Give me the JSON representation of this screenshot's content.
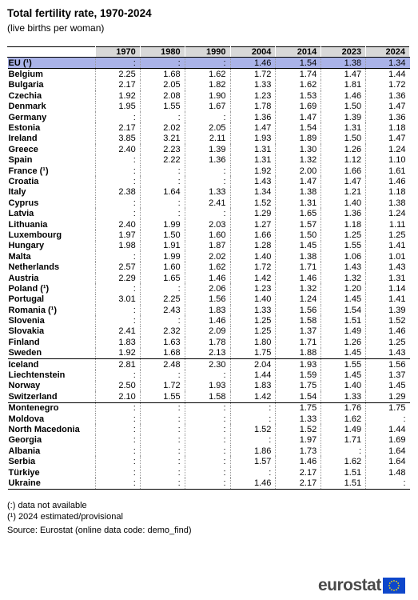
{
  "title": "Total fertility rate, 1970-2024",
  "subtitle": "(live births per woman)",
  "columns": [
    "",
    "1970",
    "1980",
    "1990",
    "2004",
    "2014",
    "2023",
    "2024"
  ],
  "rows": [
    [
      "EU (¹)",
      ":",
      ":",
      ":",
      "1.46",
      "1.54",
      "1.38",
      "1.34"
    ],
    [
      "Belgium",
      "2.25",
      "1.68",
      "1.62",
      "1.72",
      "1.74",
      "1.47",
      "1.44"
    ],
    [
      "Bulgaria",
      "2.17",
      "2.05",
      "1.82",
      "1.33",
      "1.62",
      "1.81",
      "1.72"
    ],
    [
      "Czechia",
      "1.92",
      "2.08",
      "1.90",
      "1.23",
      "1.53",
      "1.46",
      "1.36"
    ],
    [
      "Denmark",
      "1.95",
      "1.55",
      "1.67",
      "1.78",
      "1.69",
      "1.50",
      "1.47"
    ],
    [
      "Germany",
      ":",
      ":",
      ":",
      "1.36",
      "1.47",
      "1.39",
      "1.36"
    ],
    [
      "Estonia",
      "2.17",
      "2.02",
      "2.05",
      "1.47",
      "1.54",
      "1.31",
      "1.18"
    ],
    [
      "Ireland",
      "3.85",
      "3.21",
      "2.11",
      "1.93",
      "1.89",
      "1.50",
      "1.47"
    ],
    [
      "Greece",
      "2.40",
      "2.23",
      "1.39",
      "1.31",
      "1.30",
      "1.26",
      "1.24"
    ],
    [
      "Spain",
      ":",
      "2.22",
      "1.36",
      "1.31",
      "1.32",
      "1.12",
      "1.10"
    ],
    [
      "France (¹)",
      ":",
      ":",
      ":",
      "1.92",
      "2.00",
      "1.66",
      "1.61"
    ],
    [
      "Croatia",
      ":",
      ":",
      ":",
      "1.43",
      "1.47",
      "1.47",
      "1.46"
    ],
    [
      "Italy",
      "2.38",
      "1.64",
      "1.33",
      "1.34",
      "1.38",
      "1.21",
      "1.18"
    ],
    [
      "Cyprus",
      ":",
      ":",
      "2.41",
      "1.52",
      "1.31",
      "1.40",
      "1.38"
    ],
    [
      "Latvia",
      ":",
      ":",
      ":",
      "1.29",
      "1.65",
      "1.36",
      "1.24"
    ],
    [
      "Lithuania",
      "2.40",
      "1.99",
      "2.03",
      "1.27",
      "1.57",
      "1.18",
      "1.11"
    ],
    [
      "Luxembourg",
      "1.97",
      "1.50",
      "1.60",
      "1.66",
      "1.50",
      "1.25",
      "1.25"
    ],
    [
      "Hungary",
      "1.98",
      "1.91",
      "1.87",
      "1.28",
      "1.45",
      "1.55",
      "1.41"
    ],
    [
      "Malta",
      ":",
      "1.99",
      "2.02",
      "1.40",
      "1.38",
      "1.06",
      "1.01"
    ],
    [
      "Netherlands",
      "2.57",
      "1.60",
      "1.62",
      "1.72",
      "1.71",
      "1.43",
      "1.43"
    ],
    [
      "Austria",
      "2.29",
      "1.65",
      "1.46",
      "1.42",
      "1.46",
      "1.32",
      "1.31"
    ],
    [
      "Poland (¹)",
      ":",
      ":",
      "2.06",
      "1.23",
      "1.32",
      "1.20",
      "1.14"
    ],
    [
      "Portugal",
      "3.01",
      "2.25",
      "1.56",
      "1.40",
      "1.24",
      "1.45",
      "1.41"
    ],
    [
      "Romania (¹)",
      ":",
      "2.43",
      "1.83",
      "1.33",
      "1.56",
      "1.54",
      "1.39"
    ],
    [
      "Slovenia",
      ":",
      ":",
      "1.46",
      "1.25",
      "1.58",
      "1.51",
      "1.52"
    ],
    [
      "Slovakia",
      "2.41",
      "2.32",
      "2.09",
      "1.25",
      "1.37",
      "1.49",
      "1.46"
    ],
    [
      "Finland",
      "1.83",
      "1.63",
      "1.78",
      "1.80",
      "1.71",
      "1.26",
      "1.25"
    ],
    [
      "Sweden",
      "1.92",
      "1.68",
      "2.13",
      "1.75",
      "1.88",
      "1.45",
      "1.43"
    ],
    [
      "Iceland",
      "2.81",
      "2.48",
      "2.30",
      "2.04",
      "1.93",
      "1.55",
      "1.56"
    ],
    [
      "Liechtenstein",
      ":",
      ":",
      ":",
      "1.44",
      "1.59",
      "1.45",
      "1.37"
    ],
    [
      "Norway",
      "2.50",
      "1.72",
      "1.93",
      "1.83",
      "1.75",
      "1.40",
      "1.45"
    ],
    [
      "Switzerland",
      "2.10",
      "1.55",
      "1.58",
      "1.42",
      "1.54",
      "1.33",
      "1.29"
    ],
    [
      "Montenegro",
      ":",
      ":",
      ":",
      ":",
      "1.75",
      "1.76",
      "1.75"
    ],
    [
      "Moldova",
      ":",
      ":",
      ":",
      ":",
      "1.33",
      "1.62",
      ":"
    ],
    [
      "North Macedonia",
      ":",
      ":",
      ":",
      "1.52",
      "1.52",
      "1.49",
      "1.44"
    ],
    [
      "Georgia",
      ":",
      ":",
      ":",
      ":",
      "1.97",
      "1.71",
      "1.69"
    ],
    [
      "Albania",
      ":",
      ":",
      ":",
      "1.86",
      "1.73",
      ":",
      "1.64"
    ],
    [
      "Serbia",
      ":",
      ":",
      ":",
      "1.57",
      "1.46",
      "1.62",
      "1.64"
    ],
    [
      "Türkiye",
      ":",
      ":",
      ":",
      ":",
      "2.17",
      "1.51",
      "1.48"
    ],
    [
      "Ukraine",
      ":",
      ":",
      ":",
      "1.46",
      "2.17",
      "1.51",
      ":"
    ]
  ],
  "notes": [
    "(:) data not available",
    "(¹) 2024 estimated/provisional"
  ],
  "source": "Source: Eurostat (online data code: demo_find)",
  "logo_text": "eurostat",
  "colors": {
    "highlight_row": "#aab3e8",
    "header_bg": "#d8d8d8",
    "flag_blue": "#0e47cb",
    "flag_star": "#ffdd00"
  }
}
